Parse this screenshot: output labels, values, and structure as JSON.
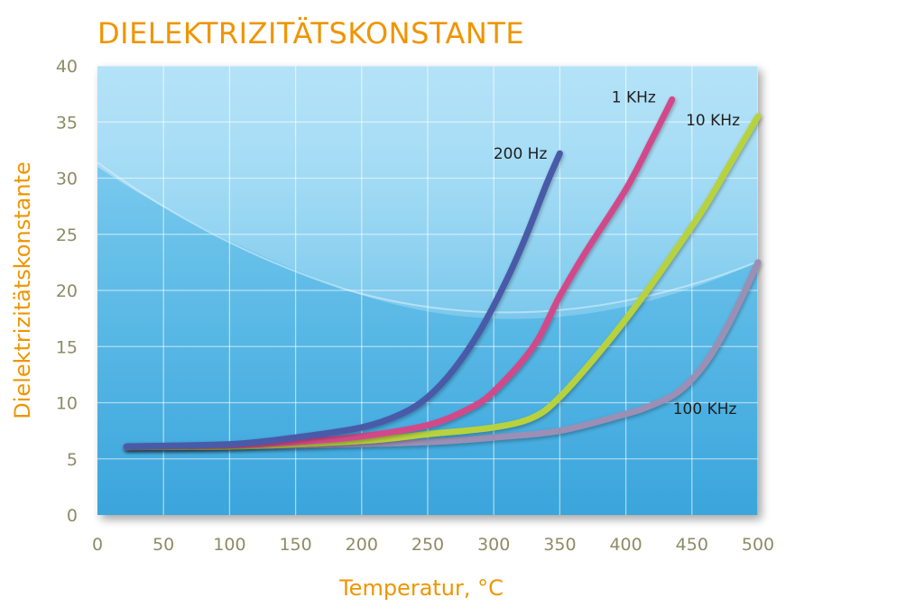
{
  "chart_data": {
    "type": "line",
    "title": "DIELEKTRIZITÄTSKONSTANTE",
    "xlabel": "Temperatur, °C",
    "ylabel": "Dielektrizitätskonstante",
    "xlim": [
      0,
      500
    ],
    "ylim": [
      0,
      40
    ],
    "x_ticks": [
      0,
      50,
      100,
      150,
      200,
      250,
      300,
      350,
      400,
      450,
      500
    ],
    "y_ticks": [
      0,
      5,
      10,
      15,
      20,
      25,
      30,
      35,
      40
    ],
    "grid": true,
    "legend": "inline labels at line ends",
    "series": [
      {
        "name": "200 Hz",
        "color": "#4a5aa8",
        "points": [
          [
            22,
            6.1
          ],
          [
            100,
            6.3
          ],
          [
            150,
            6.9
          ],
          [
            200,
            7.8
          ],
          [
            230,
            9.0
          ],
          [
            250,
            10.5
          ],
          [
            270,
            13.0
          ],
          [
            290,
            16.5
          ],
          [
            310,
            21.0
          ],
          [
            325,
            25.0
          ],
          [
            340,
            29.5
          ],
          [
            350,
            32.2
          ]
        ]
      },
      {
        "name": "1 KHz",
        "color": "#d24a8a",
        "points": [
          [
            22,
            6.1
          ],
          [
            100,
            6.2
          ],
          [
            150,
            6.5
          ],
          [
            200,
            7.0
          ],
          [
            250,
            8.0
          ],
          [
            280,
            9.4
          ],
          [
            300,
            11.0
          ],
          [
            330,
            15.0
          ],
          [
            350,
            19.5
          ],
          [
            370,
            23.5
          ],
          [
            400,
            29.0
          ],
          [
            420,
            33.5
          ],
          [
            435,
            37.0
          ]
        ]
      },
      {
        "name": "10 KHz",
        "color": "#b8d23c",
        "points": [
          [
            22,
            6.1
          ],
          [
            100,
            6.1
          ],
          [
            200,
            6.6
          ],
          [
            250,
            7.2
          ],
          [
            300,
            7.8
          ],
          [
            330,
            8.7
          ],
          [
            350,
            10.5
          ],
          [
            380,
            14.5
          ],
          [
            410,
            19.0
          ],
          [
            440,
            24.0
          ],
          [
            460,
            27.5
          ],
          [
            480,
            31.5
          ],
          [
            500,
            35.5
          ]
        ]
      },
      {
        "name": "100 KHz",
        "color": "#9b8fb5",
        "points": [
          [
            22,
            6.0
          ],
          [
            150,
            6.2
          ],
          [
            250,
            6.5
          ],
          [
            300,
            6.9
          ],
          [
            350,
            7.5
          ],
          [
            400,
            9.0
          ],
          [
            420,
            9.8
          ],
          [
            440,
            11.0
          ],
          [
            460,
            13.5
          ],
          [
            480,
            17.5
          ],
          [
            500,
            22.5
          ]
        ]
      }
    ]
  }
}
